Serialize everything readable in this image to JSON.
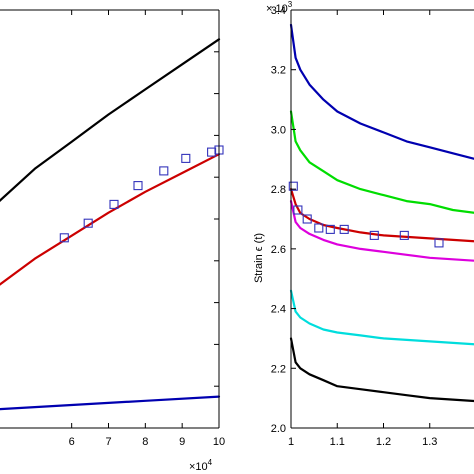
{
  "chart_data": [
    {
      "type": "line",
      "panel": "left",
      "xlim": [
        40000,
        100000
      ],
      "x_ticks": [
        60000,
        70000,
        80000,
        90000,
        100000
      ],
      "x_tick_labels": [
        "6",
        "7",
        "8",
        "9",
        "10"
      ],
      "x_multiplier": "×10",
      "x_multiplier_exp": "4",
      "ylim": [
        0,
        10
      ],
      "y_ticks": [
        1,
        2,
        3,
        4,
        5,
        6,
        7,
        8,
        9
      ],
      "grid": false,
      "series": [
        {
          "color": "#000000",
          "x": [
            40000,
            50000,
            60000,
            70000,
            80000,
            90000,
            100000
          ],
          "y": [
            5.4,
            6.2,
            6.85,
            7.5,
            8.1,
            8.7,
            9.3
          ]
        },
        {
          "color": "#cc0000",
          "x": [
            40000,
            50000,
            60000,
            70000,
            80000,
            90000,
            100000
          ],
          "y": [
            3.4,
            4.05,
            4.6,
            5.15,
            5.65,
            6.1,
            6.55
          ]
        },
        {
          "color": "#0000b0",
          "x": [
            40000,
            60000,
            80000,
            100000
          ],
          "y": [
            0.45,
            0.55,
            0.65,
            0.75
          ]
        }
      ],
      "markers": {
        "color": "#3333bb",
        "x": [
          58000,
          64500,
          71500,
          78000,
          85000,
          91000,
          98000,
          100000
        ],
        "y": [
          4.55,
          4.9,
          5.35,
          5.8,
          6.15,
          6.45,
          6.6,
          6.65
        ]
      }
    },
    {
      "type": "line",
      "panel": "right",
      "xlim": [
        1.0,
        1.4
      ],
      "x_ticks": [
        1.0,
        1.1,
        1.2,
        1.3
      ],
      "x_tick_labels": [
        "1",
        "1.1",
        "1.2",
        "1.3"
      ],
      "ylim": [
        2.0,
        3.4
      ],
      "y_ticks": [
        2.0,
        2.2,
        2.4,
        2.6,
        2.8,
        3.0,
        3.2,
        3.4
      ],
      "y_tick_labels": [
        "2.0",
        "2.2",
        "2.4",
        "2.6",
        "2.8",
        "3.0",
        "3.2",
        "3.4"
      ],
      "y_multiplier": "× 10",
      "y_multiplier_exp": "3",
      "ylabel": "Strain ϵ (t)",
      "grid": false,
      "series": [
        {
          "color": "#0000b0",
          "x": [
            1.0,
            1.01,
            1.02,
            1.04,
            1.07,
            1.1,
            1.15,
            1.2,
            1.25,
            1.3,
            1.35,
            1.4
          ],
          "y": [
            3.35,
            3.24,
            3.2,
            3.15,
            3.1,
            3.06,
            3.02,
            2.99,
            2.96,
            2.94,
            2.92,
            2.9
          ]
        },
        {
          "color": "#00dd00",
          "x": [
            1.0,
            1.01,
            1.02,
            1.04,
            1.07,
            1.1,
            1.15,
            1.2,
            1.25,
            1.3,
            1.35,
            1.4
          ],
          "y": [
            3.06,
            2.96,
            2.93,
            2.89,
            2.86,
            2.83,
            2.8,
            2.78,
            2.76,
            2.75,
            2.73,
            2.72
          ]
        },
        {
          "color": "#cc0000",
          "x": [
            1.0,
            1.01,
            1.02,
            1.04,
            1.07,
            1.1,
            1.15,
            1.2,
            1.25,
            1.3,
            1.35,
            1.4
          ],
          "y": [
            2.8,
            2.75,
            2.72,
            2.7,
            2.68,
            2.67,
            2.655,
            2.645,
            2.64,
            2.635,
            2.63,
            2.625
          ]
        },
        {
          "color": "#dd00dd",
          "x": [
            1.0,
            1.01,
            1.02,
            1.04,
            1.07,
            1.1,
            1.15,
            1.2,
            1.25,
            1.3,
            1.35,
            1.4
          ],
          "y": [
            2.76,
            2.69,
            2.67,
            2.65,
            2.63,
            2.615,
            2.6,
            2.59,
            2.58,
            2.57,
            2.565,
            2.56
          ]
        },
        {
          "color": "#00dddd",
          "x": [
            1.0,
            1.01,
            1.02,
            1.04,
            1.07,
            1.1,
            1.15,
            1.2,
            1.25,
            1.3,
            1.35,
            1.4
          ],
          "y": [
            2.46,
            2.39,
            2.37,
            2.35,
            2.33,
            2.32,
            2.31,
            2.3,
            2.295,
            2.29,
            2.285,
            2.28
          ]
        },
        {
          "color": "#000000",
          "x": [
            1.0,
            1.01,
            1.02,
            1.04,
            1.07,
            1.1,
            1.15,
            1.2,
            1.25,
            1.3,
            1.35,
            1.4
          ],
          "y": [
            2.3,
            2.22,
            2.2,
            2.18,
            2.16,
            2.14,
            2.13,
            2.12,
            2.11,
            2.1,
            2.095,
            2.09
          ]
        }
      ],
      "markers": {
        "color": "#3333bb",
        "x": [
          1.005,
          1.015,
          1.035,
          1.06,
          1.085,
          1.115,
          1.18,
          1.245,
          1.32
        ],
        "y": [
          2.81,
          2.73,
          2.7,
          2.67,
          2.665,
          2.665,
          2.645,
          2.645,
          2.62
        ]
      }
    }
  ]
}
